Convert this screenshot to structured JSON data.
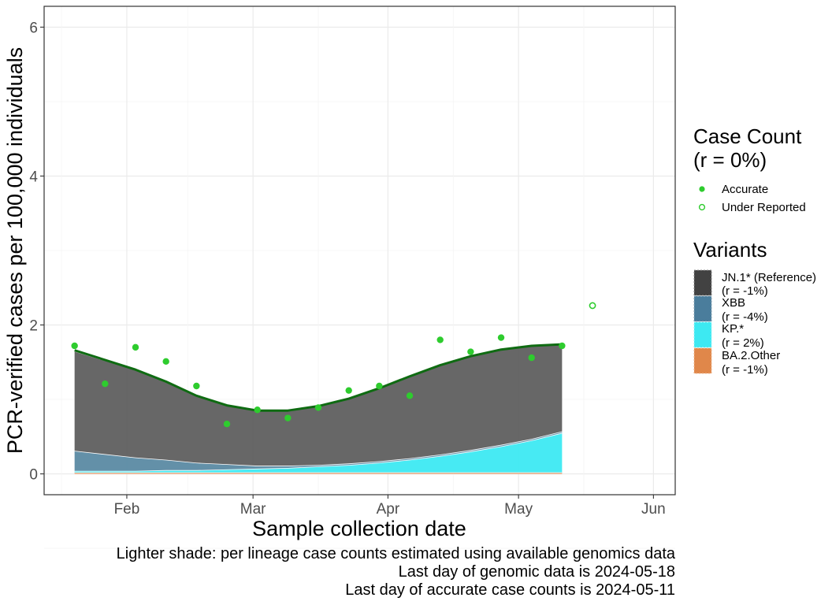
{
  "chart_data": {
    "type": "area",
    "xlabel": "Sample collection date",
    "ylabel": "PCR-verified cases per 100,000 individuals",
    "xlim": [
      "2024-01-13",
      "2024-06-06"
    ],
    "ylim": [
      -0.28,
      6.28
    ],
    "yticks": [
      0,
      2,
      4,
      6
    ],
    "x_ticks": [
      {
        "date": "2024-02-01",
        "label": "Feb"
      },
      {
        "date": "2024-03-01",
        "label": "Mar"
      },
      {
        "date": "2024-04-01",
        "label": "Apr"
      },
      {
        "date": "2024-05-01",
        "label": "May"
      },
      {
        "date": "2024-06-01",
        "label": "Jun"
      }
    ],
    "grid": true,
    "series_dates": [
      "2024-01-20",
      "2024-02-03",
      "2024-02-10",
      "2024-02-17",
      "2024-02-24",
      "2024-03-02",
      "2024-03-09",
      "2024-03-16",
      "2024-03-23",
      "2024-03-30",
      "2024-04-06",
      "2024-04-13",
      "2024-04-20",
      "2024-04-27",
      "2024-05-04",
      "2024-05-11"
    ],
    "stacked_series": [
      {
        "key": "ba2",
        "color": "#e07b3c",
        "values": [
          0.02,
          0.02,
          0.02,
          0.02,
          0.02,
          0.02,
          0.02,
          0.02,
          0.02,
          0.02,
          0.02,
          0.02,
          0.02,
          0.02,
          0.02,
          0.02
        ]
      },
      {
        "key": "kp",
        "color": "#3de9f2",
        "values": [
          0.02,
          0.02,
          0.03,
          0.03,
          0.04,
          0.05,
          0.06,
          0.08,
          0.1,
          0.13,
          0.17,
          0.22,
          0.28,
          0.35,
          0.43,
          0.53
        ]
      },
      {
        "key": "xbb",
        "color": "#5b8aa3",
        "values": [
          0.27,
          0.18,
          0.14,
          0.1,
          0.07,
          0.04,
          0.03,
          0.02,
          0.02,
          0.02,
          0.02,
          0.02,
          0.02,
          0.02,
          0.02,
          0.02
        ]
      },
      {
        "key": "jn1",
        "color": "#5f5f5f",
        "values": [
          1.33,
          1.17,
          1.04,
          0.89,
          0.79,
          0.74,
          0.74,
          0.79,
          0.87,
          0.98,
          1.1,
          1.2,
          1.26,
          1.28,
          1.25,
          1.16
        ]
      }
    ],
    "total_line": {
      "color": "#0f6b12",
      "values": [
        1.66,
        1.4,
        1.24,
        1.05,
        0.92,
        0.85,
        0.85,
        0.91,
        1.01,
        1.15,
        1.31,
        1.46,
        1.58,
        1.67,
        1.72,
        1.74
      ]
    },
    "case_points": {
      "accurate": {
        "dates": [
          "2024-01-20",
          "2024-01-27",
          "2024-02-03",
          "2024-02-10",
          "2024-02-17",
          "2024-02-24",
          "2024-03-02",
          "2024-03-09",
          "2024-03-16",
          "2024-03-23",
          "2024-03-30",
          "2024-04-06",
          "2024-04-13",
          "2024-04-20",
          "2024-04-27",
          "2024-05-04",
          "2024-05-11"
        ],
        "values": [
          1.72,
          1.21,
          1.7,
          1.51,
          1.18,
          0.67,
          0.86,
          0.75,
          0.89,
          1.12,
          1.18,
          1.05,
          1.8,
          1.64,
          1.83,
          1.56,
          1.72
        ]
      },
      "under_reported": {
        "dates": [
          "2024-05-18"
        ],
        "values": [
          2.26
        ]
      },
      "color": "#2ecc2e"
    },
    "legend": {
      "placement": "right",
      "case_count": {
        "title_line1": "Case Count",
        "title_line2": "(r = 0%)",
        "items": [
          {
            "label": "Accurate",
            "symbol": "filled-circle"
          },
          {
            "label": "Under Reported",
            "symbol": "open-circle"
          }
        ]
      },
      "variants": {
        "title": "Variants",
        "items": [
          {
            "key": "jn1",
            "label_line1": "JN.1* (Reference)",
            "label_line2": "(r = -1%)",
            "color": "#424242"
          },
          {
            "key": "xbb",
            "label_line1": "XBB",
            "label_line2": "(r = -4%)",
            "color": "#4a7d9c"
          },
          {
            "key": "kp",
            "label_line1": "KP.*",
            "label_line2": "(r = 2%)",
            "color": "#3de9f2"
          },
          {
            "key": "ba2",
            "label_line1": "BA.2.Other",
            "label_line2": "(r = -1%)",
            "color": "#e0874a"
          }
        ]
      }
    },
    "caption": [
      "Lighter shade: per lineage case counts estimated using available genomics data",
      "Last day of genomic data is 2024-05-18",
      "Last day of accurate case counts is 2024-05-11"
    ]
  }
}
